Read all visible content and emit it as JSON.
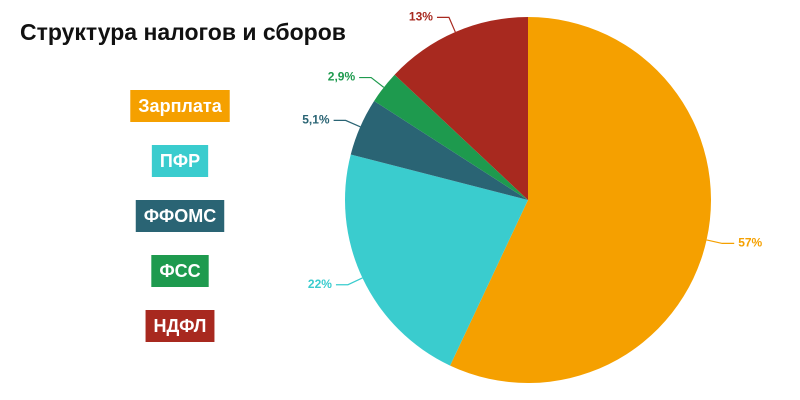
{
  "chart_data": {
    "type": "pie",
    "title": "Структура налогов и сборов",
    "categories": [
      "Зарплата",
      "ПФР",
      "ФФОМС",
      "ФСС",
      "НДФЛ"
    ],
    "values": [
      57,
      22,
      5.1,
      2.9,
      13
    ],
    "value_labels": [
      "57%",
      "22%",
      "5,1%",
      "2,9%",
      "13%"
    ],
    "colors": [
      "#f5a000",
      "#3accce",
      "#2a6474",
      "#1e9a4e",
      "#a8291f"
    ]
  }
}
